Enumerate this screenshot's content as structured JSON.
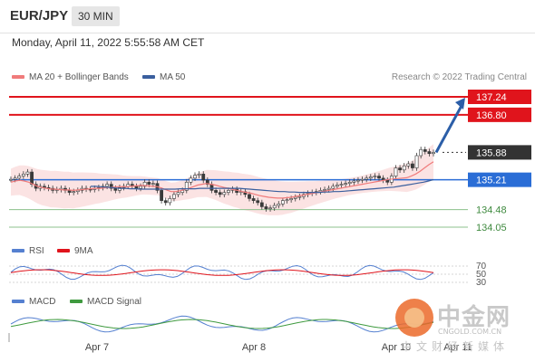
{
  "header": {
    "symbol": "EUR/JPY",
    "timeframe": "30 MIN"
  },
  "datetime": "Monday, April 11, 2022 5:55:58 AM CET",
  "legend": {
    "ma20_label": "MA 20 + Bollinger Bands",
    "ma50_label": "MA 50",
    "credit": "Research © 2022 Trading Central"
  },
  "indicators": {
    "rsi_label": "RSI",
    "rsi_ma_label": "9MA",
    "macd_label": "MACD",
    "macd_signal_label": "MACD Signal"
  },
  "watermark": {
    "cn": "中金网",
    "en": "CNGOLD.COM.CN",
    "sub": "中文财经新媒体"
  },
  "colors": {
    "resistance": "#e0141c",
    "current": "#333333",
    "pivot": "#2a6dd6",
    "support": "#3f9a3f",
    "ma20": "#f07b7b",
    "ma50": "#3a5f9e",
    "band": "#fbe3e3",
    "arrow": "#2b5ea8",
    "rsi": "#5580d0",
    "macd_signal": "#3f9a3f"
  },
  "chart_data": {
    "type": "line",
    "title": "EUR/JPY",
    "timeframe": "30 MIN",
    "x_tick_labels": [
      "Apr 7",
      "Apr 8",
      "Apr 10",
      "Apr 11"
    ],
    "price_levels": [
      {
        "label": "137.24",
        "value": 137.24,
        "kind": "resistance"
      },
      {
        "label": "136.80",
        "value": 136.8,
        "kind": "resistance"
      },
      {
        "label": "135.88",
        "value": 135.88,
        "kind": "current"
      },
      {
        "label": "135.21",
        "value": 135.21,
        "kind": "pivot"
      },
      {
        "label": "134.48",
        "value": 134.48,
        "kind": "support"
      },
      {
        "label": "134.05",
        "value": 134.05,
        "kind": "support"
      }
    ],
    "price_series": [
      135.22,
      135.25,
      135.3,
      135.35,
      135.4,
      135.1,
      135.0,
      135.05,
      135.02,
      135.0,
      134.95,
      134.97,
      135.0,
      134.95,
      134.9,
      134.92,
      134.95,
      135.0,
      134.98,
      134.97,
      135.0,
      135.02,
      135.05,
      135.1,
      135.0,
      134.95,
      135.02,
      135.05,
      135.1,
      135.05,
      135.0,
      135.05,
      135.15,
      135.1,
      135.12,
      134.95,
      134.7,
      134.65,
      134.75,
      134.85,
      134.9,
      134.95,
      135.15,
      135.25,
      135.32,
      135.35,
      135.2,
      135.1,
      134.95,
      134.9,
      134.85,
      134.9,
      134.95,
      134.98,
      134.9,
      134.92,
      134.85,
      134.75,
      134.7,
      134.65,
      134.55,
      134.5,
      134.52,
      134.58,
      134.62,
      134.7,
      134.72,
      134.75,
      134.78,
      134.8,
      134.85,
      134.88,
      134.9,
      134.92,
      134.95,
      134.97,
      135.0,
      135.05,
      135.08,
      135.1,
      135.12,
      135.15,
      135.18,
      135.2,
      135.22,
      135.25,
      135.28,
      135.3,
      135.25,
      135.2,
      135.15,
      135.3,
      135.5,
      135.45,
      135.55,
      135.6,
      135.5,
      135.8,
      135.95,
      135.9,
      135.85,
      135.88
    ],
    "ma20_series": [
      135.15,
      135.18,
      135.2,
      135.18,
      135.15,
      135.1,
      135.05,
      135.02,
      135.0,
      134.98,
      134.98,
      134.97,
      134.96,
      134.96,
      134.95,
      134.96,
      134.97,
      134.98,
      134.99,
      135.0,
      135.0,
      135.01,
      135.02,
      135.03,
      135.04,
      135.04,
      135.04,
      135.05,
      135.06,
      135.07,
      135.07,
      135.06,
      135.05,
      135.04,
      135.0,
      134.96,
      134.92,
      134.92,
      134.94,
      134.97,
      135.0,
      135.04,
      135.08,
      135.1,
      135.12,
      135.1,
      135.08,
      135.05,
      135.02,
      135.0,
      134.97,
      134.95,
      134.92,
      134.9,
      134.88,
      134.85,
      134.82,
      134.8,
      134.78,
      134.77,
      134.76,
      134.76,
      134.77,
      134.78,
      134.8,
      134.82,
      134.84,
      134.86,
      134.88,
      134.9,
      134.92,
      134.94,
      134.96,
      134.98,
      135.0,
      135.02,
      135.04,
      135.06,
      135.08,
      135.1,
      135.12,
      135.14,
      135.16,
      135.18,
      135.2,
      135.22,
      135.23,
      135.24,
      135.25,
      135.26,
      135.3,
      135.35,
      135.42,
      135.5,
      135.58,
      135.65
    ],
    "ma50_series": [
      135.05,
      135.05,
      135.04,
      135.03,
      135.02,
      135.01,
      135.0,
      135.0,
      134.99,
      134.99,
      134.98,
      134.98,
      134.98,
      134.98,
      134.98,
      134.98,
      134.98,
      134.98,
      134.99,
      134.99,
      134.99,
      134.99,
      135.0,
      135.0,
      135.0,
      135.0,
      135.0,
      135.0,
      135.0,
      135.0,
      135.0,
      134.99,
      134.98,
      134.97,
      134.96,
      134.95,
      134.94,
      134.93,
      134.92,
      134.92,
      134.91,
      134.91,
      134.9,
      134.9,
      134.9,
      134.9,
      134.9,
      134.91,
      134.91,
      134.92,
      134.92,
      134.93,
      134.94,
      134.95,
      134.96,
      134.97,
      134.98,
      134.99,
      135.0,
      135.01,
      135.02,
      135.03,
      135.05,
      135.07,
      135.09,
      135.11,
      135.13,
      135.15,
      135.18,
      135.21
    ]
  }
}
